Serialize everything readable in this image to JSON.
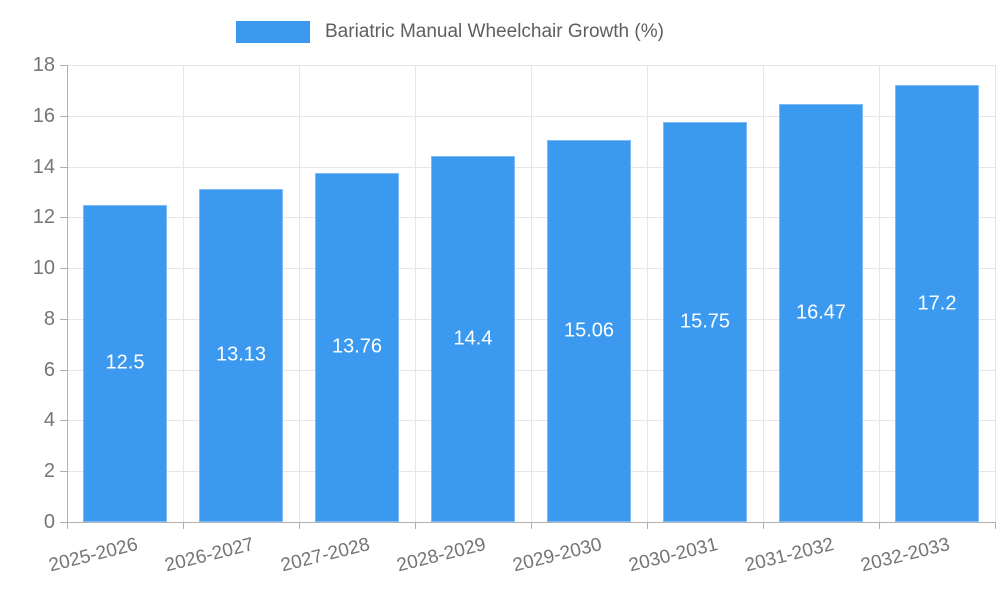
{
  "chart_data": {
    "type": "bar",
    "title": "Bariatric Manual Wheelchair Growth (%)",
    "categories": [
      "2025-2026",
      "2026-2027",
      "2027-2028",
      "2028-2029",
      "2029-2030",
      "2030-2031",
      "2031-2032",
      "2032-2033"
    ],
    "values": [
      12.5,
      13.13,
      13.76,
      14.4,
      15.06,
      15.75,
      16.47,
      17.2
    ],
    "value_labels": [
      "12.5",
      "13.13",
      "13.76",
      "14.4",
      "15.06",
      "15.75",
      "16.47",
      "17.2"
    ],
    "xlabel": "",
    "ylabel": "",
    "ylim": [
      0,
      18
    ],
    "yticks": [
      0,
      2,
      4,
      6,
      8,
      10,
      12,
      14,
      16,
      18
    ],
    "grid": true,
    "legend_position": "top",
    "colors": {
      "bar_fill": "#3B99F0",
      "bar_border": "#7cbbf5",
      "grid_line": "#e6e6e6",
      "axis_line": "#b0b0b0",
      "tick_text": "#757575",
      "legend_text": "#5f5f5f",
      "value_text": "#ffffff",
      "background": "#ffffff"
    }
  }
}
